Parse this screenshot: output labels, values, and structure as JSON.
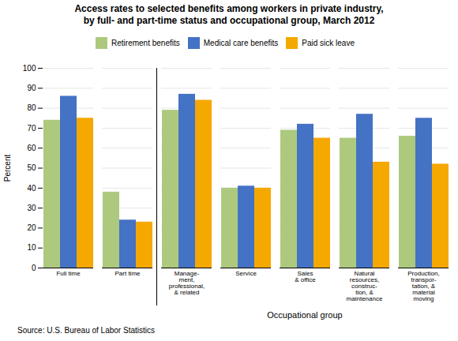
{
  "chart_data": {
    "type": "bar",
    "title": "Access rates to selected benefits among workers in private industry,",
    "subtitle": "by full- and part-time status and occupational group, March 2012",
    "categories": [
      "Full time",
      "Part time",
      "Manage-\nment,\nprofessional,\n& related",
      "Service",
      "Sales\n& office",
      "Natural\nresources,\nconstruc-\ntion, &\nmaintenance",
      "Production,\ntranspor-\ntation, &\nmaterial\nmoving"
    ],
    "series": [
      {
        "name": "Retirement benefits",
        "color": "#adc97e",
        "values": [
          74,
          38,
          79,
          40,
          69,
          65,
          66
        ]
      },
      {
        "name": "Medical care benefits",
        "color": "#4472c4",
        "values": [
          86,
          24,
          87,
          41,
          72,
          77,
          75
        ]
      },
      {
        "name": "Paid sick leave",
        "color": "#f5a800",
        "values": [
          75,
          23,
          84,
          40,
          65,
          53,
          52
        ]
      }
    ],
    "ylabel": "Percent",
    "xlabel": "Occupational group",
    "source": "Source: U.S. Bureau of Labor Statistics",
    "ylim": [
      0,
      100
    ],
    "yticks": [
      0,
      10,
      20,
      30,
      40,
      50,
      60,
      70,
      80,
      90,
      100
    ],
    "grid": true,
    "legend": "top"
  }
}
